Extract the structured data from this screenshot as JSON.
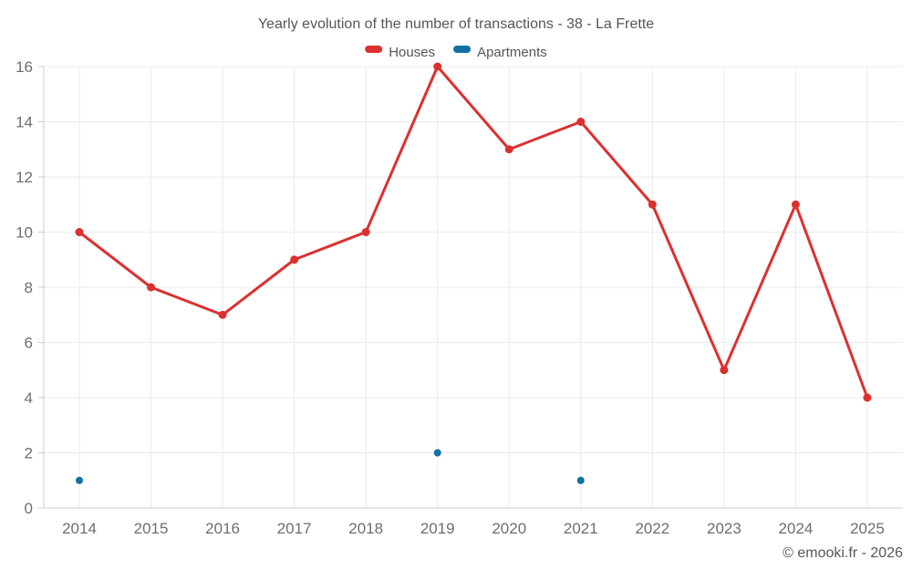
{
  "title": "Yearly evolution of the number of transactions - 38 - La Frette",
  "footer": "© emooki.fr - 2026",
  "colors": {
    "houses": "#dc3030",
    "apartments": "#1270a5",
    "grid": "#ebebeb",
    "axis": "#cccccc",
    "tick_text": "#6e6e6e",
    "title_text": "#565656"
  },
  "chart_data": {
    "type": "line",
    "title": "Yearly evolution of the number of transactions - 38 - La Frette",
    "categories": [
      "2014",
      "2015",
      "2016",
      "2017",
      "2018",
      "2019",
      "2020",
      "2021",
      "2022",
      "2023",
      "2024",
      "2025"
    ],
    "series": [
      {
        "name": "Houses",
        "type": "line",
        "color": "#dc3030",
        "line_width": 3,
        "marker_radius": 4.5,
        "values": [
          10,
          8,
          7,
          9,
          10,
          16,
          13,
          14,
          11,
          5,
          11,
          4
        ]
      },
      {
        "name": "Apartments",
        "type": "scatter",
        "color": "#1270a5",
        "marker_radius": 4,
        "values": [
          1,
          null,
          null,
          null,
          null,
          2,
          null,
          1,
          null,
          null,
          null,
          null
        ]
      }
    ],
    "xlabel": "",
    "ylabel": "",
    "ylim": [
      0,
      16
    ],
    "ytick_step": 2,
    "grid": true,
    "legend_position": "top"
  }
}
